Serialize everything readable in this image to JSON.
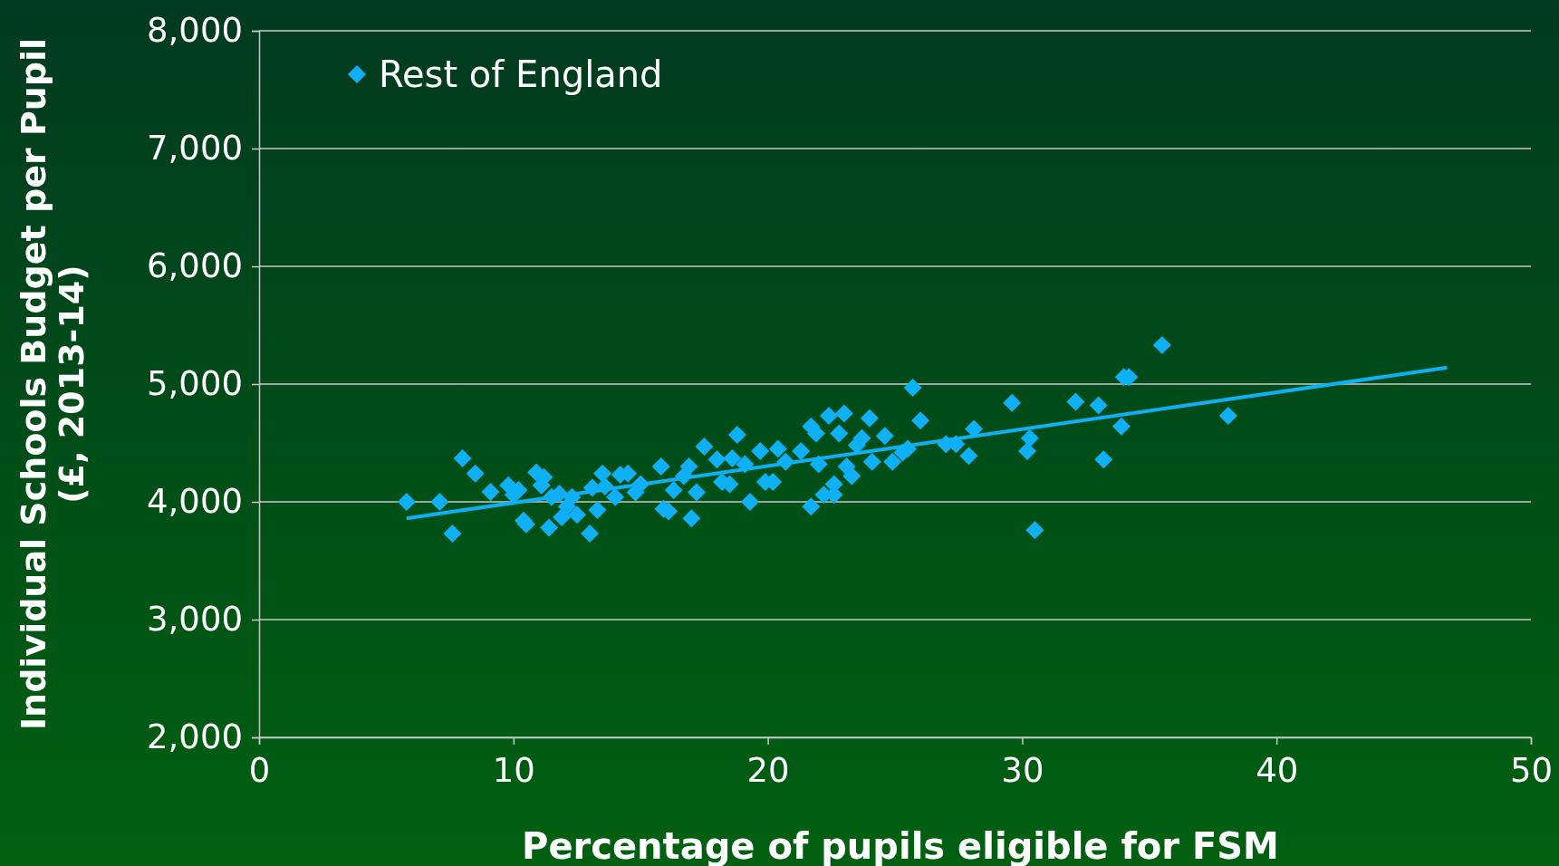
{
  "chart_data": {
    "type": "scatter",
    "xlabel": "Percentage of pupils eligible for FSM",
    "ylabel": "Individual Schools Budget per Pupil\n(£, 2013-14)",
    "xlim": [
      0,
      50
    ],
    "xticks": [
      0,
      10,
      20,
      30,
      40,
      50
    ],
    "ylim": [
      2000,
      8000
    ],
    "yticks": [
      {
        "value": 2000,
        "label": "2,000"
      },
      {
        "value": 3000,
        "label": "3,000"
      },
      {
        "value": 4000,
        "label": "4,000"
      },
      {
        "value": 5000,
        "label": "5,000"
      },
      {
        "value": 6000,
        "label": "6,000"
      },
      {
        "value": 7000,
        "label": "7,000"
      },
      {
        "value": 8000,
        "label": "8,000"
      }
    ],
    "grid": "y",
    "legend": "top left",
    "series": [
      {
        "name": "Rest of England",
        "color": "#0fb0f5",
        "marker": "diamond",
        "x": [
          5.8,
          7.1,
          7.6,
          8.0,
          8.5,
          9.1,
          9.8,
          10.0,
          10.2,
          10.4,
          10.5,
          10.9,
          11.2,
          11.1,
          11.4,
          11.5,
          11.8,
          11.9,
          12.1,
          12.3,
          12.5,
          13.0,
          13.1,
          13.3,
          13.5,
          13.6,
          14.0,
          14.2,
          14.5,
          14.8,
          15.0,
          15.8,
          15.9,
          16.1,
          16.3,
          16.7,
          16.9,
          17.0,
          17.2,
          17.5,
          18.0,
          18.2,
          18.5,
          18.6,
          18.8,
          19.1,
          19.3,
          19.7,
          19.9,
          20.2,
          20.4,
          20.7,
          21.3,
          21.7,
          21.7,
          21.9,
          22.0,
          22.2,
          22.4,
          22.6,
          22.6,
          22.8,
          23.0,
          23.1,
          23.3,
          23.5,
          23.7,
          24.0,
          24.1,
          24.6,
          24.9,
          25.3,
          25.5,
          25.7,
          26.0,
          27.0,
          27.4,
          27.9,
          28.1,
          29.6,
          30.2,
          30.3,
          30.5,
          32.1,
          33.0,
          33.2,
          33.9,
          34.0,
          34.2,
          35.5,
          38.1
        ],
        "values": [
          4000,
          4000,
          3730,
          4370,
          4240,
          4085,
          4140,
          4060,
          4100,
          3840,
          3810,
          4250,
          4210,
          4140,
          3780,
          4040,
          4070,
          3870,
          3960,
          4040,
          3890,
          3730,
          4120,
          3930,
          4240,
          4130,
          4040,
          4230,
          4240,
          4080,
          4150,
          4300,
          3940,
          3920,
          4100,
          4220,
          4300,
          3860,
          4080,
          4470,
          4360,
          4170,
          4150,
          4370,
          4570,
          4320,
          4000,
          4430,
          4170,
          4170,
          4450,
          4340,
          4430,
          4640,
          3960,
          4580,
          4320,
          4060,
          4730,
          4060,
          4150,
          4580,
          4750,
          4300,
          4220,
          4480,
          4540,
          4710,
          4340,
          4560,
          4340,
          4420,
          4450,
          4970,
          4690,
          4490,
          4490,
          4390,
          4620,
          4840,
          4430,
          4540,
          3760,
          4850,
          4820,
          4360,
          4640,
          5060,
          5060,
          5330,
          4730
        ]
      },
      {
        "type": "line",
        "color": "#0fb0f5",
        "marker": "none",
        "x": [
          5.8,
          46.7
        ],
        "values": [
          3860,
          5140
        ]
      }
    ]
  }
}
